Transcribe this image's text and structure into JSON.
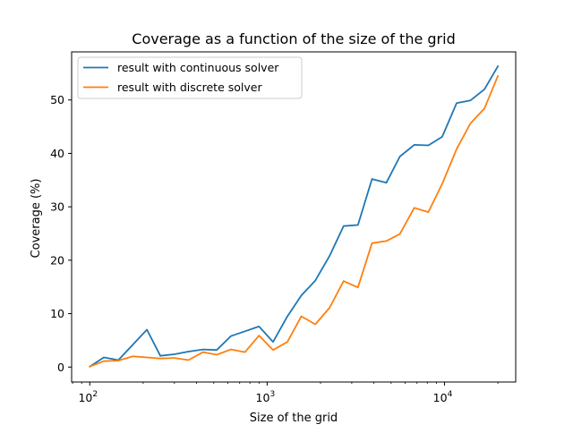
{
  "chart_data": {
    "type": "line",
    "title": "Coverage as a function of the size of the grid",
    "xlabel": "Size of the grid",
    "ylabel": "Coverage (%)",
    "xscale": "log",
    "xlim": [
      79,
      25200
    ],
    "ylim": [
      -2.8,
      59.0
    ],
    "x_ticks": [
      {
        "value": 100,
        "base": "10",
        "exp": "2"
      },
      {
        "value": 1000,
        "base": "10",
        "exp": "3"
      },
      {
        "value": 10000,
        "base": "10",
        "exp": "4"
      }
    ],
    "y_ticks": [
      "0",
      "10",
      "20",
      "30",
      "40",
      "50"
    ],
    "grid": false,
    "legend_position": "top-left",
    "x": [
      100,
      120,
      145,
      175,
      210,
      250,
      300,
      360,
      435,
      520,
      625,
      750,
      900,
      1080,
      1300,
      1560,
      1870,
      2250,
      2700,
      3250,
      3900,
      4700,
      5600,
      6750,
      8100,
      9700,
      11700,
      14000,
      16800,
      20000
    ],
    "series": [
      {
        "name": "result with continuous solver",
        "color": "#1f77b4",
        "values": [
          0.1,
          1.8,
          1.3,
          4.2,
          7.0,
          2.1,
          2.4,
          2.9,
          3.3,
          3.2,
          5.8,
          6.7,
          7.6,
          4.7,
          9.5,
          13.4,
          16.2,
          20.8,
          26.4,
          26.6,
          35.2,
          34.5,
          39.4,
          41.6,
          41.5,
          43.1,
          49.4,
          49.9,
          52.0,
          56.3
        ]
      },
      {
        "name": "result with discrete solver",
        "color": "#ff7f0e",
        "values": [
          0.1,
          1.1,
          1.2,
          2.0,
          1.8,
          1.6,
          1.7,
          1.3,
          2.8,
          2.3,
          3.3,
          2.8,
          5.9,
          3.2,
          4.7,
          9.5,
          8.0,
          11.1,
          16.1,
          14.9,
          23.2,
          23.6,
          24.9,
          29.8,
          29.0,
          34.3,
          40.8,
          45.6,
          48.4,
          54.5
        ]
      }
    ]
  }
}
